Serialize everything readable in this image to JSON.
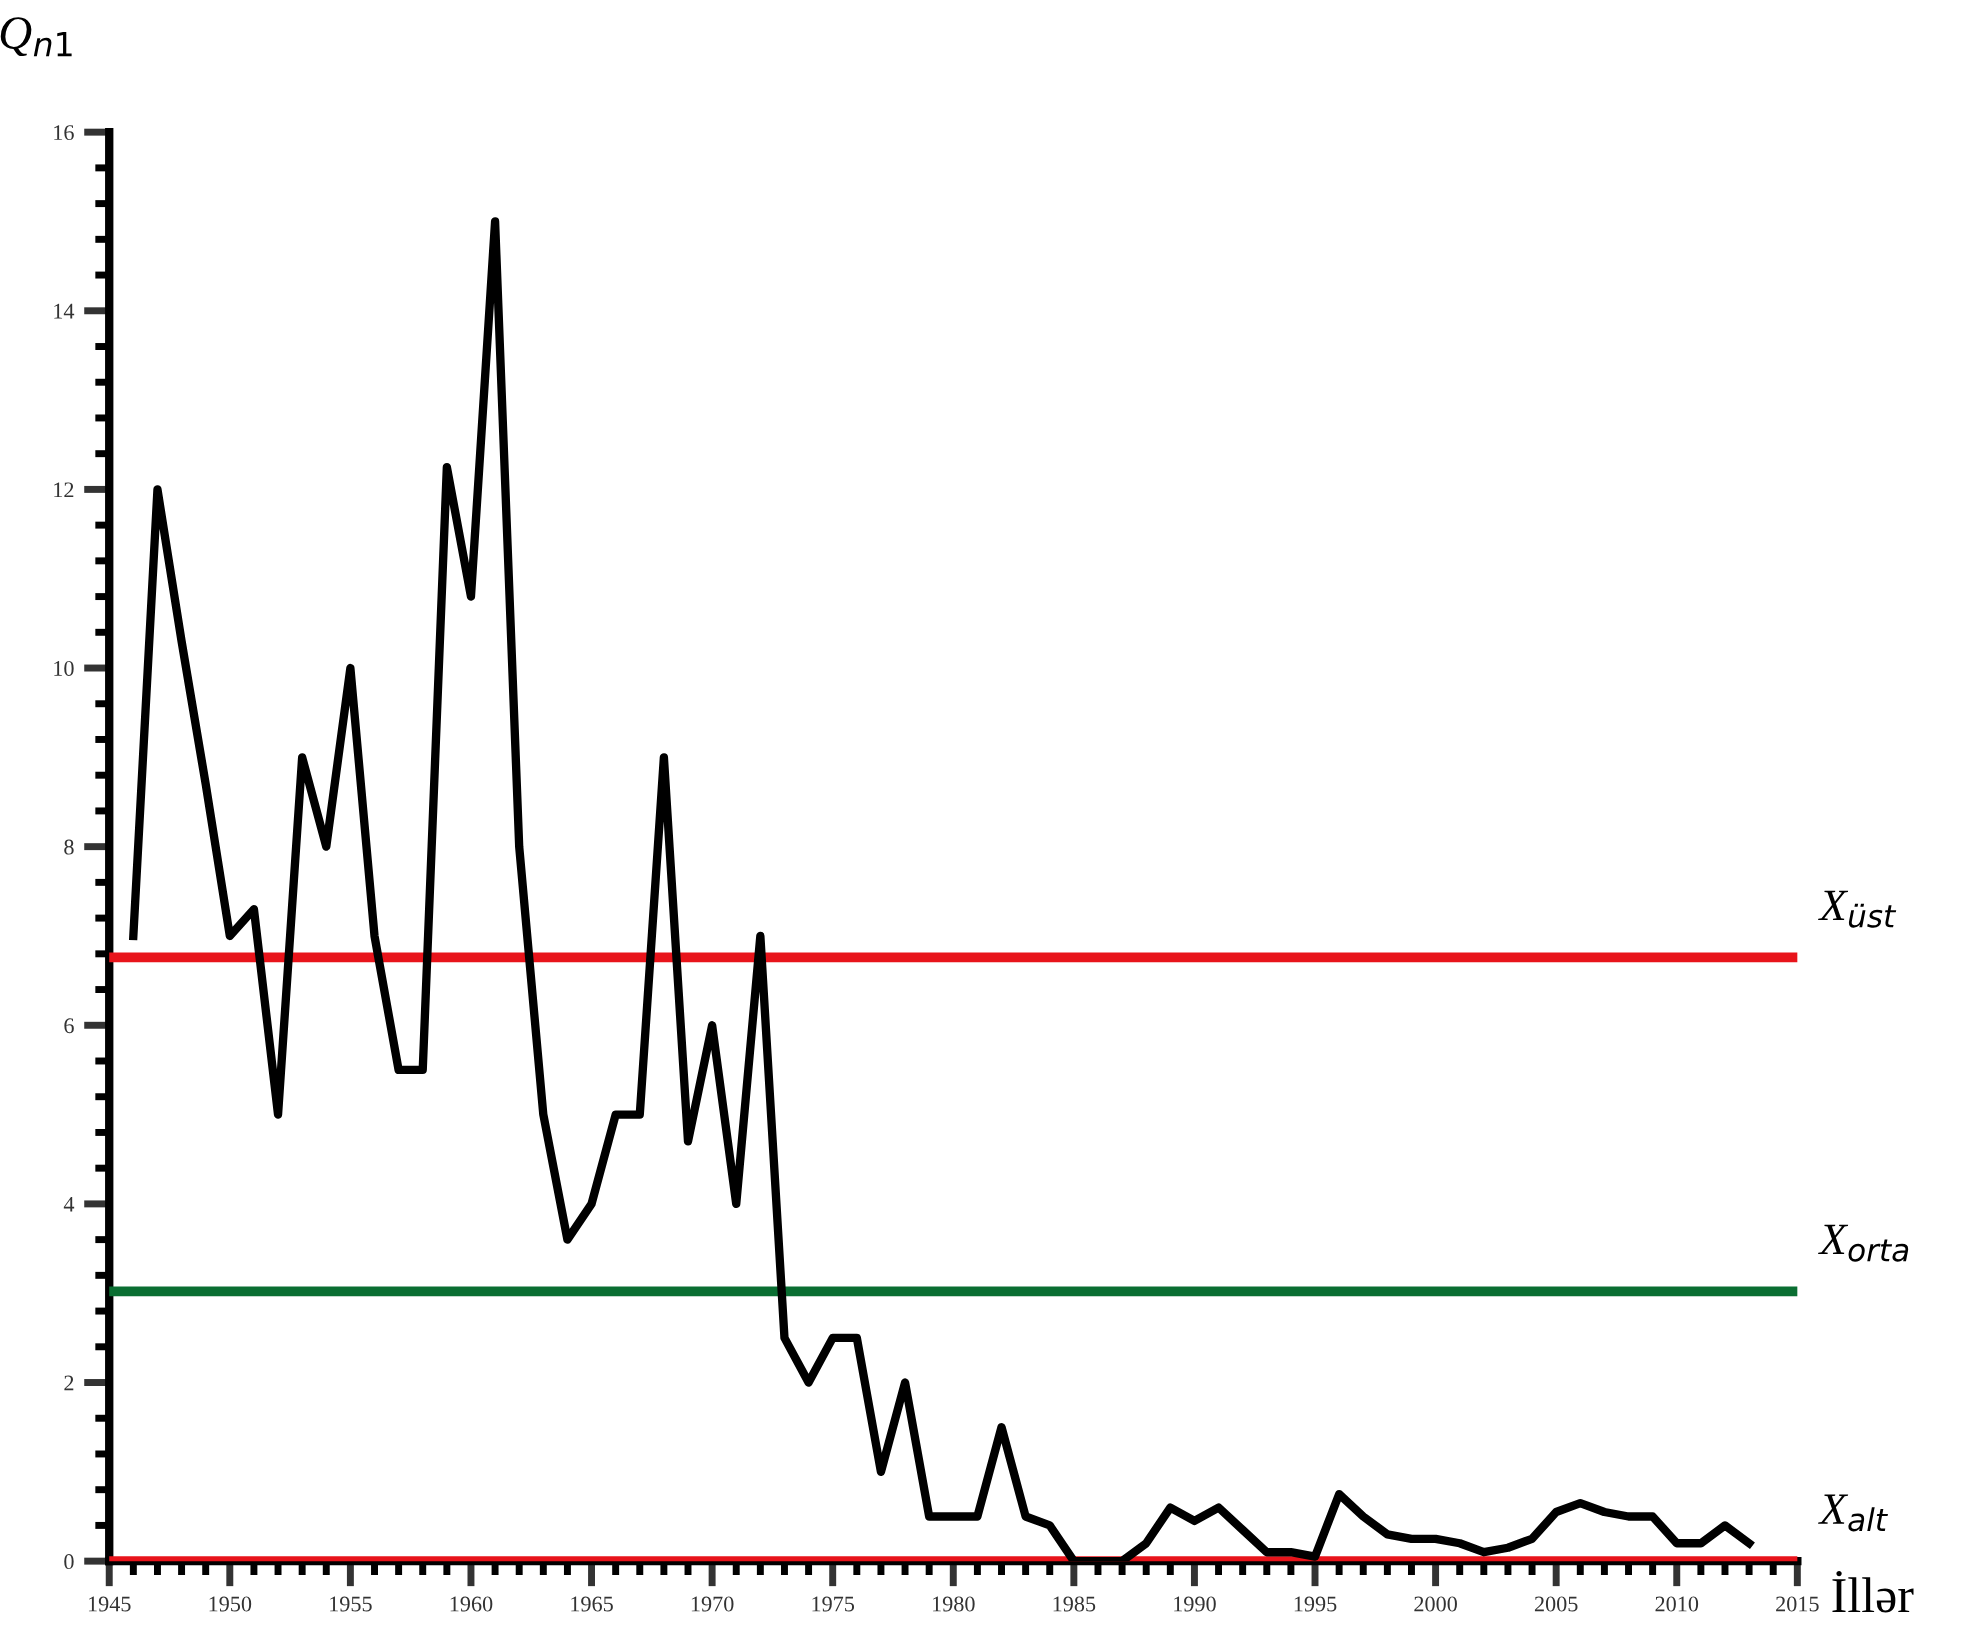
{
  "chart_data": {
    "type": "line",
    "xlabel": "İllər",
    "ylabel": "Q$_{n1}$",
    "x": [
      1946,
      1947,
      1948,
      1949,
      1950,
      1951,
      1952,
      1953,
      1954,
      1955,
      1956,
      1957,
      1958,
      1959,
      1960,
      1961,
      1962,
      1963,
      1964,
      1965,
      1966,
      1967,
      1968,
      1969,
      1970,
      1971,
      1972,
      1973,
      1974,
      1975,
      1976,
      1977,
      1978,
      1979,
      1980,
      1981,
      1982,
      1983,
      1984,
      1985,
      1986,
      1987,
      1988,
      1989,
      1990,
      1991,
      1992,
      1993,
      1994,
      1995,
      1996,
      1997,
      1998,
      1999,
      2000,
      2001,
      2002,
      2003,
      2004,
      2005,
      2006,
      2007,
      2008,
      2009,
      2010,
      2011,
      2012,
      2013
    ],
    "series": [
      {
        "color": "#000000",
        "values": [
          7.0,
          12.0,
          10.3,
          8.7,
          7.0,
          7.3,
          5.0,
          9.0,
          8.0,
          10.0,
          7.0,
          5.5,
          5.5,
          12.25,
          10.8,
          15.0,
          8.0,
          5.0,
          3.6,
          4.0,
          5.0,
          5.0,
          9.0,
          4.7,
          6.0,
          4.0,
          7.0,
          2.5,
          2.0,
          2.5,
          2.5,
          1.0,
          2.0,
          0.5,
          0.5,
          0.5,
          1.5,
          0.5,
          0.4,
          0.0,
          0.0,
          0.0,
          0.2,
          0.6,
          0.45,
          0.6,
          0.35,
          0.1,
          0.1,
          0.05,
          0.75,
          0.5,
          0.3,
          0.25,
          0.25,
          0.2,
          0.1,
          0.15,
          0.25,
          0.55,
          0.65,
          0.55,
          0.5,
          0.5,
          0.2,
          0.2,
          0.4,
          0.2
        ]
      }
    ],
    "xlim": [
      1945,
      2015
    ],
    "xticks": [
      1945,
      1950,
      1955,
      1960,
      1965,
      1970,
      1975,
      1980,
      1985,
      1990,
      1995,
      2000,
      2005,
      2010,
      2015
    ],
    "ylim": [
      0,
      16
    ],
    "yticks": [
      0,
      2,
      4,
      6,
      8,
      10,
      12,
      14,
      16
    ],
    "ref_lines": [
      {
        "axis": "y",
        "value": 6.76,
        "label": "X$_{üst}$",
        "color": "#e8141b"
      },
      {
        "axis": "y",
        "value": 3.02,
        "label": "X$_{orta}$",
        "color": "#0a6e32"
      },
      {
        "axis": "y",
        "value": 0,
        "label": "X$_{alt}$",
        "color": "#e8141b"
      }
    ],
    "grid": false,
    "legend": false,
    "marker": "none",
    "line_style": "solid"
  }
}
